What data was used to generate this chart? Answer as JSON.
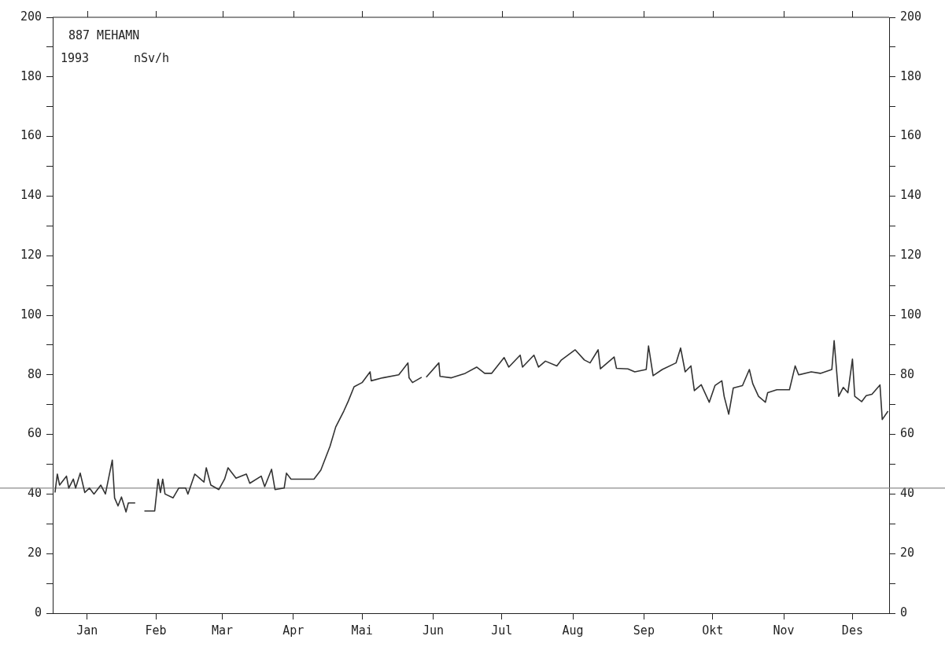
{
  "chart_data": {
    "type": "line",
    "title": "887 MEHAMN",
    "subtitle": "1993",
    "ylabel": "nSv/h",
    "xlim": [
      "1993-01-01",
      "1994-01-01"
    ],
    "xticks": [
      {
        "value": "1993-01-16",
        "label": "Jan"
      },
      {
        "value": "1993-02-15",
        "label": "Feb"
      },
      {
        "value": "1993-03-16",
        "label": "Mar"
      },
      {
        "value": "1993-04-16",
        "label": "Apr"
      },
      {
        "value": "1993-05-16",
        "label": "Mai"
      },
      {
        "value": "1993-06-16",
        "label": "Jun"
      },
      {
        "value": "1993-07-16",
        "label": "Jul"
      },
      {
        "value": "1993-08-16",
        "label": "Aug"
      },
      {
        "value": "1993-09-16",
        "label": "Sep"
      },
      {
        "value": "1993-10-16",
        "label": "Okt"
      },
      {
        "value": "1993-11-16",
        "label": "Nov"
      },
      {
        "value": "1993-12-16",
        "label": "Des"
      }
    ],
    "ylim": [
      0,
      200
    ],
    "yticks": [
      0,
      {
        "value": 10,
        "label": null
      },
      20,
      {
        "value": 30,
        "label": null
      },
      40,
      {
        "value": 50,
        "label": null
      },
      60,
      {
        "value": 70,
        "label": null
      },
      80,
      {
        "value": 90,
        "label": null
      },
      100,
      {
        "value": 110,
        "label": null
      },
      120,
      {
        "value": 130,
        "label": null
      },
      140,
      {
        "value": 150,
        "label": null
      },
      160,
      {
        "value": 170,
        "label": null
      },
      180,
      {
        "value": 190,
        "label": null
      },
      200
    ],
    "y2lim": [
      0,
      200
    ],
    "y2ticks": [
      0,
      {
        "value": 10,
        "label": null
      },
      20,
      {
        "value": 30,
        "label": null
      },
      40,
      {
        "value": 50,
        "label": null
      },
      60,
      {
        "value": 70,
        "label": null
      },
      80,
      {
        "value": 90,
        "label": null
      },
      100,
      {
        "value": 110,
        "label": null
      },
      120,
      {
        "value": 130,
        "label": null
      },
      140,
      {
        "value": 150,
        "label": null
      },
      160,
      {
        "value": 170,
        "label": null
      },
      180,
      {
        "value": 190,
        "label": null
      },
      200
    ],
    "grid": false,
    "legend": false,
    "marker": "none",
    "line_style": "solid",
    "ref_lines": [
      {
        "axis": "y",
        "value": 42,
        "color": "#8c8c8c"
      }
    ],
    "series": [
      {
        "color": "#333333",
        "x": [
          "1993-01-02",
          "1993-01-03",
          "1993-01-04",
          "1993-01-07",
          "1993-01-08",
          "1993-01-10",
          "1993-01-11",
          "1993-01-13",
          "1993-01-15",
          "1993-01-17",
          "1993-01-19",
          "1993-01-22",
          "1993-01-24",
          "1993-01-27",
          "1993-01-28",
          "1993-01-29T12:00",
          "1993-01-31",
          "1993-02-02",
          "1993-02-03",
          "1993-02-06",
          "1993-02-07T12:00",
          "1993-02-10",
          "1993-02-14T12:00",
          "1993-02-16",
          "1993-02-17",
          "1993-02-18",
          "1993-02-19",
          "1993-02-22T12:00",
          "1993-02-25",
          "1993-02-28",
          "1993-03-01",
          "1993-03-04",
          "1993-03-08",
          "1993-03-09",
          "1993-03-11",
          "1993-03-14T12:00",
          "1993-03-17",
          "1993-03-18T12:00",
          "1993-03-22",
          "1993-03-26T12:00",
          "1993-03-28",
          "1993-04-02",
          "1993-04-03T12:00",
          "1993-04-06T12:00",
          "1993-04-08",
          "1993-04-12",
          "1993-04-13",
          "1993-04-15",
          "1993-04-22",
          "1993-04-25",
          "1993-04-28",
          "1993-05-02",
          "1993-05-04T12:00",
          "1993-05-08",
          "1993-05-10",
          "1993-05-12T12:00",
          "1993-05-16",
          "1993-05-19T12:00",
          "1993-05-20",
          "1993-05-25",
          "1993-06-01",
          "1993-06-05",
          "1993-06-05T12:00",
          "1993-06-07",
          "1993-06-11",
          "1993-06-12",
          "1993-06-13",
          "1993-06-18T12:00",
          "1993-06-19",
          "1993-06-24",
          "1993-06-30",
          "1993-07-05",
          "1993-07-08T12:00",
          "1993-07-11T12:00",
          "1993-07-17",
          "1993-07-19",
          "1993-07-24",
          "1993-07-25",
          "1993-07-30",
          "1993-08-01",
          "1993-08-04",
          "1993-08-09",
          "1993-08-11",
          "1993-08-17",
          "1993-08-21",
          "1993-08-23T12:00",
          "1993-08-27",
          "1993-08-28",
          "1993-09-03",
          "1993-09-04",
          "1993-09-09",
          "1993-09-12",
          "1993-09-17",
          "1993-09-18",
          "1993-09-20",
          "1993-09-24",
          "1993-09-30",
          "1993-10-02",
          "1993-10-04",
          "1993-10-06T12:00",
          "1993-10-08",
          "1993-10-11",
          "1993-10-14T12:00",
          "1993-10-17",
          "1993-10-20",
          "1993-10-21",
          "1993-10-23",
          "1993-10-25",
          "1993-10-29",
          "1993-11-01",
          "1993-11-02T12:00",
          "1993-11-05",
          "1993-11-08",
          "1993-11-09",
          "1993-11-13",
          "1993-11-18T12:00",
          "1993-11-21",
          "1993-11-22T12:00",
          "1993-11-28",
          "1993-12-02",
          "1993-12-07",
          "1993-12-08",
          "1993-12-10",
          "1993-12-12",
          "1993-12-14",
          "1993-12-16",
          "1993-12-17",
          "1993-12-20",
          "1993-12-22",
          "1993-12-24T12:00",
          "1993-12-28",
          "1993-12-29",
          "1993-12-31T12:00"
        ],
        "values": [
          40.5,
          46.7,
          43,
          46,
          42,
          45,
          42,
          47,
          40.5,
          42,
          40,
          43,
          40,
          51.4,
          38.7,
          36,
          39,
          34,
          37,
          37,
          null,
          34.3,
          34.3,
          45,
          40.5,
          45,
          40,
          38.7,
          42,
          42,
          40,
          46.7,
          44,
          48.8,
          43,
          41.5,
          45,
          48.8,
          45.3,
          46.7,
          43.6,
          46,
          42.5,
          48.3,
          41.5,
          42,
          47,
          45,
          45,
          45,
          48,
          56,
          62.5,
          67.8,
          71.2,
          76,
          77.4,
          81,
          78,
          79,
          80,
          84,
          79,
          77.4,
          79.2,
          null,
          79.2,
          84,
          79.5,
          79,
          80.5,
          82.6,
          80.5,
          80.5,
          85.8,
          82.6,
          86.6,
          82.6,
          86.6,
          82.6,
          84.6,
          83,
          85,
          88.4,
          85,
          84,
          88.4,
          82,
          86,
          82.2,
          82,
          81,
          81.8,
          89.7,
          79.7,
          81.8,
          84,
          89,
          81,
          83,
          74.7,
          76.7,
          70.8,
          76.4,
          78,
          72.8,
          66.8,
          75.6,
          76.4,
          81.8,
          77,
          72.8,
          70.8,
          74,
          75,
          75,
          83,
          80,
          81,
          80.5,
          81.8,
          91.5,
          72.8,
          75.8,
          74,
          85.3,
          72.8,
          71,
          73,
          73.5,
          76.6,
          65,
          67.8
        ]
      }
    ]
  }
}
